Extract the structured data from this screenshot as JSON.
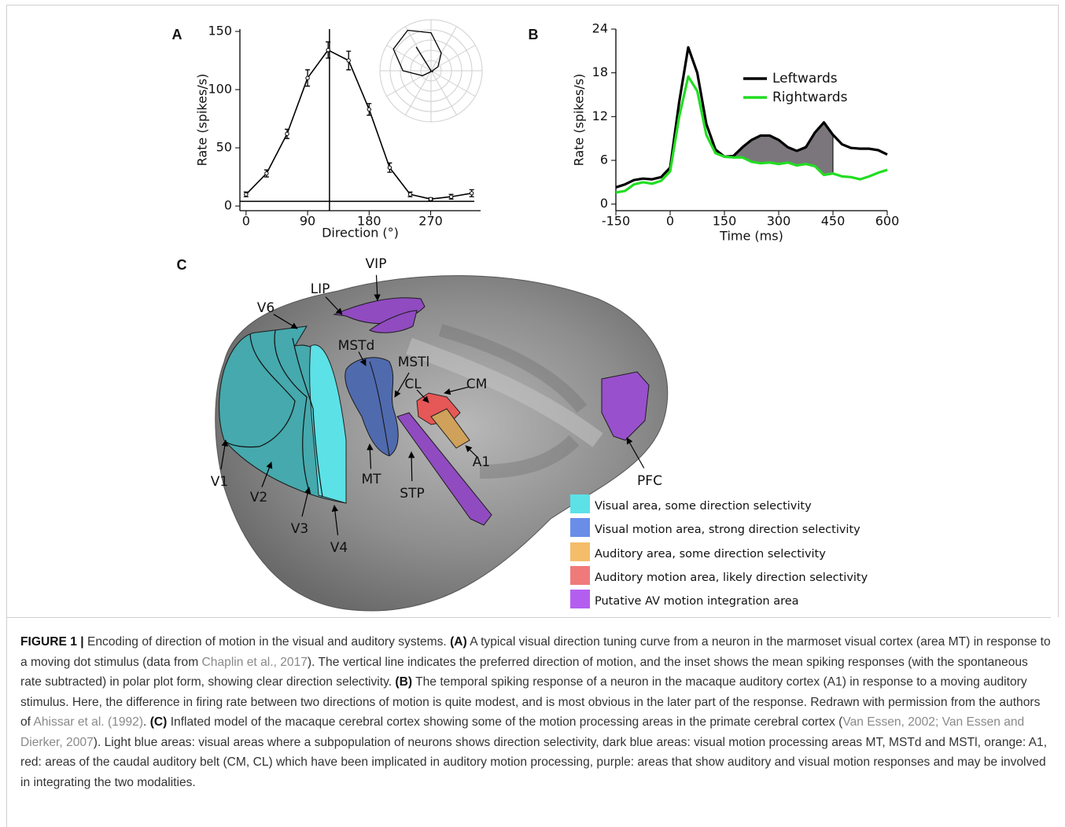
{
  "chart_data": [
    {
      "type": "line",
      "panel": "A",
      "x": [
        0,
        30,
        60,
        90,
        120,
        150,
        180,
        210,
        240,
        270,
        300,
        330
      ],
      "xlim": [
        -9,
        343
      ],
      "xticks": [
        0,
        90,
        180,
        270
      ],
      "ylim": [
        -4,
        152
      ],
      "yticks": [
        0,
        50,
        100,
        150
      ],
      "xlabel": "Direction (°)",
      "ylabel": "Rate (spikes/s)",
      "series": [
        {
          "color": "#000000",
          "values": [
            10,
            28,
            62,
            110,
            134,
            125,
            83,
            33,
            10,
            6,
            8,
            11
          ],
          "errors": [
            2,
            3,
            4,
            7,
            7,
            8,
            5,
            4,
            2,
            1,
            2,
            3
          ]
        }
      ],
      "preferred_direction": 122,
      "spontaneous_rate": 4,
      "inset": {
        "type": "polar",
        "values": [
          4,
          22,
          56,
          104,
          128,
          119,
          77,
          27,
          4,
          0,
          2,
          5
        ],
        "rlim": [
          0,
          140
        ]
      }
    },
    {
      "type": "line",
      "panel": "B",
      "x": [
        -150,
        -125,
        -100,
        -75,
        -50,
        -25,
        0,
        25,
        50,
        75,
        100,
        125,
        150,
        175,
        200,
        225,
        250,
        275,
        300,
        325,
        350,
        375,
        400,
        425,
        450,
        475,
        500,
        525,
        550,
        575,
        600
      ],
      "xlim": [
        -150,
        600
      ],
      "xticks": [
        -150,
        0,
        150,
        300,
        450,
        600
      ],
      "ylim": [
        -0.9,
        24
      ],
      "yticks": [
        0,
        6,
        12,
        18,
        24
      ],
      "xlabel": "Time (ms)",
      "ylabel": "Rate (spikes/s)",
      "legend": "upper right",
      "series": [
        {
          "name": "Leftwards",
          "color": "#000000",
          "values": [
            2.3,
            2.7,
            3.3,
            3.5,
            3.4,
            3.7,
            5,
            14,
            21.5,
            18,
            11,
            7.5,
            6.5,
            6.6,
            7.8,
            8.8,
            9.4,
            9.4,
            8.8,
            7.8,
            7.3,
            7.8,
            9.8,
            11.2,
            9.5,
            8.2,
            7.7,
            7.6,
            7.6,
            7.4,
            6.8
          ]
        },
        {
          "name": "Rightwards",
          "color": "#22dd22",
          "values": [
            1.6,
            1.8,
            2.7,
            3.0,
            2.8,
            3.2,
            4.5,
            12,
            17.5,
            15.5,
            9.5,
            7,
            6.5,
            6.4,
            6.4,
            5.8,
            5.6,
            5.7,
            5.5,
            5.7,
            5.3,
            5.5,
            5.2,
            4.0,
            4.2,
            3.8,
            3.7,
            3.4,
            3.8,
            4.3,
            4.7
          ]
        }
      ],
      "shaded_interval": [
        175,
        450
      ],
      "shade_color": "#7a767c"
    }
  ],
  "diagram": {
    "panel": "C",
    "labels": [
      "VIP",
      "LIP",
      "V6",
      "MSTd",
      "MSTl",
      "CL",
      "CM",
      "A1",
      "PFC",
      "MT",
      "STP",
      "V1",
      "V2",
      "V3",
      "V4"
    ],
    "legend": [
      {
        "label": "Visual area, some direction selectivity",
        "color": "#5ce1e6"
      },
      {
        "label": "Visual motion area, strong direction selectivity",
        "color": "#6a8ee8"
      },
      {
        "label": "Auditory area, some direction selectivity",
        "color": "#f4bd6a"
      },
      {
        "label": "Auditory motion area, likely direction selectivity",
        "color": "#f07a7a"
      },
      {
        "label": "Putative AV motion integration area",
        "color": "#b45ef0"
      }
    ]
  },
  "caption": [
    {
      "text": "FIGURE 1 |",
      "style": "bold"
    },
    {
      "text": " Encoding of direction of motion in the visual and auditory systems. ",
      "style": "plain"
    },
    {
      "text": "(A)",
      "style": "bold"
    },
    {
      "text": " A typical visual direction tuning curve from a neuron in the marmoset visual cortex (area MT) in response to a moving dot stimulus (data from ",
      "style": "plain"
    },
    {
      "text": "Chaplin et al., 2017",
      "style": "link"
    },
    {
      "text": "). The vertical line indicates the preferred direction of motion, and the inset shows the mean spiking responses (with the spontaneous rate subtracted) in polar plot form, showing clear direction selectivity. ",
      "style": "plain"
    },
    {
      "text": "(B)",
      "style": "bold"
    },
    {
      "text": " The temporal spiking response of a neuron in the macaque auditory cortex (A1) in response to a moving auditory stimulus. Here, the difference in firing rate between two directions of motion is quite modest, and is most obvious in the later part of the response. Redrawn with permission from the authors of ",
      "style": "plain"
    },
    {
      "text": "Ahissar et al. (1992)",
      "style": "link"
    },
    {
      "text": ". ",
      "style": "plain"
    },
    {
      "text": "(C)",
      "style": "bold"
    },
    {
      "text": " Inflated model of the macaque cerebral cortex showing some of the motion processing areas in the primate cerebral cortex (",
      "style": "plain"
    },
    {
      "text": "Van Essen, 2002; Van Essen and Dierker, 2007",
      "style": "link"
    },
    {
      "text": "). Light blue areas: visual areas where a subpopulation of neurons shows direction selectivity, dark blue areas: visual motion processing areas MT, MSTd and MSTl, orange: A1, red: areas of the caudal auditory belt (CM, CL) which have been implicated in auditory motion processing, purple: areas that show auditory and visual motion responses and may be involved in integrating the two modalities.",
      "style": "plain"
    }
  ]
}
